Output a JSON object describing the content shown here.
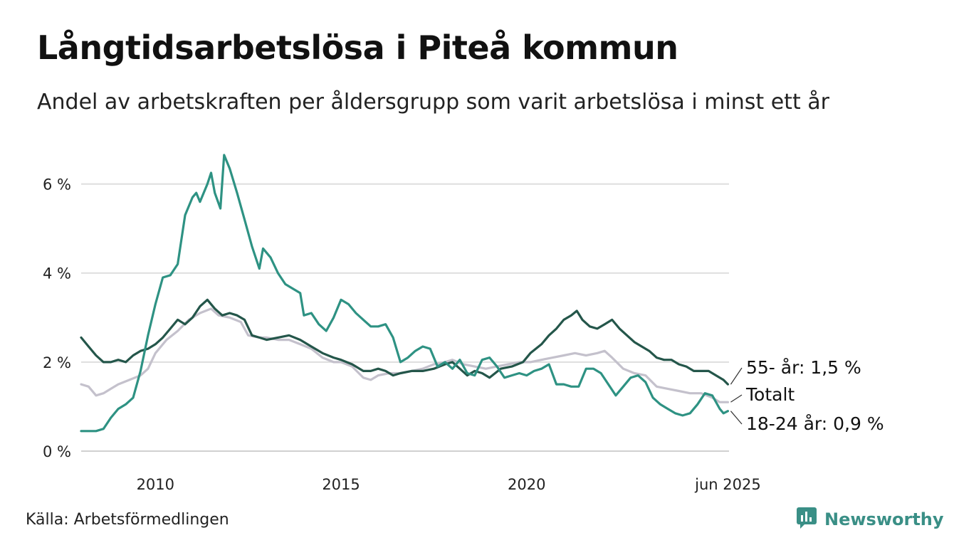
{
  "title": "Långtidsarbetslösa i Piteå kommun",
  "subtitle": "Andel av arbetskraften per åldersgrupp som varit arbetslösa i minst ett år",
  "source": "Källa: Arbetsförmedlingen",
  "brand": "Newsworthy",
  "brand_icon": "bar-chart-icon",
  "chart_data": {
    "type": "line",
    "xlim": [
      2008.0,
      2025.45
    ],
    "ylim": [
      0,
      7
    ],
    "x_ticks": [
      {
        "value": 2010,
        "label": "2010"
      },
      {
        "value": 2015,
        "label": "2015"
      },
      {
        "value": 2020,
        "label": "2020"
      },
      {
        "value": 2025.42,
        "label": "jun 2025"
      }
    ],
    "y_ticks": [
      {
        "value": 0,
        "label": "0 %"
      },
      {
        "value": 2,
        "label": "2 %"
      },
      {
        "value": 4,
        "label": "4 %"
      },
      {
        "value": 6,
        "label": "6 %"
      }
    ],
    "grid": true,
    "legend": "direct labels at line ends",
    "series": [
      {
        "name": "Totalt",
        "end_label": "Totalt",
        "color": "#c4c1cc",
        "points": [
          [
            2008.0,
            1.5
          ],
          [
            2008.2,
            1.45
          ],
          [
            2008.4,
            1.25
          ],
          [
            2008.6,
            1.3
          ],
          [
            2008.8,
            1.4
          ],
          [
            2009.0,
            1.5
          ],
          [
            2009.3,
            1.6
          ],
          [
            2009.6,
            1.7
          ],
          [
            2009.8,
            1.85
          ],
          [
            2010.0,
            2.2
          ],
          [
            2010.3,
            2.5
          ],
          [
            2010.6,
            2.7
          ],
          [
            2010.9,
            2.95
          ],
          [
            2011.2,
            3.1
          ],
          [
            2011.5,
            3.2
          ],
          [
            2011.7,
            3.05
          ],
          [
            2012.0,
            3.0
          ],
          [
            2012.3,
            2.9
          ],
          [
            2012.5,
            2.6
          ],
          [
            2012.8,
            2.55
          ],
          [
            2013.0,
            2.55
          ],
          [
            2013.3,
            2.5
          ],
          [
            2013.6,
            2.5
          ],
          [
            2013.9,
            2.4
          ],
          [
            2014.2,
            2.3
          ],
          [
            2014.5,
            2.1
          ],
          [
            2014.8,
            2.0
          ],
          [
            2015.0,
            2.0
          ],
          [
            2015.3,
            1.9
          ],
          [
            2015.6,
            1.65
          ],
          [
            2015.8,
            1.6
          ],
          [
            2016.0,
            1.7
          ],
          [
            2016.3,
            1.75
          ],
          [
            2016.6,
            1.75
          ],
          [
            2016.9,
            1.8
          ],
          [
            2017.2,
            1.85
          ],
          [
            2017.5,
            1.95
          ],
          [
            2017.8,
            2.0
          ],
          [
            2018.0,
            2.05
          ],
          [
            2018.3,
            1.95
          ],
          [
            2018.6,
            1.9
          ],
          [
            2018.9,
            1.85
          ],
          [
            2019.2,
            1.9
          ],
          [
            2019.5,
            1.95
          ],
          [
            2019.8,
            2.0
          ],
          [
            2020.1,
            2.0
          ],
          [
            2020.4,
            2.05
          ],
          [
            2020.7,
            2.1
          ],
          [
            2021.0,
            2.15
          ],
          [
            2021.3,
            2.2
          ],
          [
            2021.6,
            2.15
          ],
          [
            2021.9,
            2.2
          ],
          [
            2022.1,
            2.25
          ],
          [
            2022.3,
            2.1
          ],
          [
            2022.6,
            1.85
          ],
          [
            2022.9,
            1.75
          ],
          [
            2023.2,
            1.7
          ],
          [
            2023.5,
            1.45
          ],
          [
            2023.8,
            1.4
          ],
          [
            2024.1,
            1.35
          ],
          [
            2024.4,
            1.3
          ],
          [
            2024.7,
            1.3
          ],
          [
            2025.0,
            1.2
          ],
          [
            2025.2,
            1.1
          ],
          [
            2025.42,
            1.1
          ]
        ]
      },
      {
        "name": "55- år",
        "end_label": "55- år: 1,5 %",
        "color": "#24564a",
        "points": [
          [
            2008.0,
            2.55
          ],
          [
            2008.2,
            2.35
          ],
          [
            2008.4,
            2.15
          ],
          [
            2008.6,
            2.0
          ],
          [
            2008.8,
            2.0
          ],
          [
            2009.0,
            2.05
          ],
          [
            2009.2,
            2.0
          ],
          [
            2009.4,
            2.15
          ],
          [
            2009.6,
            2.25
          ],
          [
            2009.8,
            2.3
          ],
          [
            2010.0,
            2.4
          ],
          [
            2010.2,
            2.55
          ],
          [
            2010.4,
            2.75
          ],
          [
            2010.6,
            2.95
          ],
          [
            2010.8,
            2.85
          ],
          [
            2011.0,
            3.0
          ],
          [
            2011.2,
            3.25
          ],
          [
            2011.4,
            3.4
          ],
          [
            2011.6,
            3.2
          ],
          [
            2011.8,
            3.05
          ],
          [
            2012.0,
            3.1
          ],
          [
            2012.2,
            3.05
          ],
          [
            2012.4,
            2.95
          ],
          [
            2012.6,
            2.6
          ],
          [
            2012.8,
            2.55
          ],
          [
            2013.0,
            2.5
          ],
          [
            2013.3,
            2.55
          ],
          [
            2013.6,
            2.6
          ],
          [
            2013.9,
            2.5
          ],
          [
            2014.2,
            2.35
          ],
          [
            2014.5,
            2.2
          ],
          [
            2014.8,
            2.1
          ],
          [
            2015.0,
            2.05
          ],
          [
            2015.3,
            1.95
          ],
          [
            2015.6,
            1.8
          ],
          [
            2015.8,
            1.8
          ],
          [
            2016.0,
            1.85
          ],
          [
            2016.2,
            1.8
          ],
          [
            2016.4,
            1.7
          ],
          [
            2016.6,
            1.75
          ],
          [
            2016.9,
            1.8
          ],
          [
            2017.2,
            1.8
          ],
          [
            2017.5,
            1.85
          ],
          [
            2017.8,
            1.95
          ],
          [
            2018.0,
            2.0
          ],
          [
            2018.2,
            1.85
          ],
          [
            2018.4,
            1.7
          ],
          [
            2018.6,
            1.8
          ],
          [
            2018.8,
            1.75
          ],
          [
            2019.0,
            1.65
          ],
          [
            2019.3,
            1.85
          ],
          [
            2019.6,
            1.9
          ],
          [
            2019.9,
            2.0
          ],
          [
            2020.1,
            2.2
          ],
          [
            2020.4,
            2.4
          ],
          [
            2020.6,
            2.6
          ],
          [
            2020.8,
            2.75
          ],
          [
            2021.0,
            2.95
          ],
          [
            2021.2,
            3.05
          ],
          [
            2021.35,
            3.15
          ],
          [
            2021.5,
            2.95
          ],
          [
            2021.7,
            2.8
          ],
          [
            2021.9,
            2.75
          ],
          [
            2022.1,
            2.85
          ],
          [
            2022.3,
            2.95
          ],
          [
            2022.5,
            2.75
          ],
          [
            2022.7,
            2.6
          ],
          [
            2022.9,
            2.45
          ],
          [
            2023.1,
            2.35
          ],
          [
            2023.3,
            2.25
          ],
          [
            2023.5,
            2.1
          ],
          [
            2023.7,
            2.05
          ],
          [
            2023.9,
            2.05
          ],
          [
            2024.1,
            1.95
          ],
          [
            2024.3,
            1.9
          ],
          [
            2024.5,
            1.8
          ],
          [
            2024.7,
            1.8
          ],
          [
            2024.9,
            1.8
          ],
          [
            2025.1,
            1.7
          ],
          [
            2025.3,
            1.6
          ],
          [
            2025.42,
            1.5
          ]
        ]
      },
      {
        "name": "18-24 år",
        "end_label": "18-24 år: 0,9 %",
        "color": "#2e9283",
        "points": [
          [
            2008.0,
            0.45
          ],
          [
            2008.2,
            0.45
          ],
          [
            2008.4,
            0.45
          ],
          [
            2008.6,
            0.5
          ],
          [
            2008.8,
            0.75
          ],
          [
            2009.0,
            0.95
          ],
          [
            2009.2,
            1.05
          ],
          [
            2009.4,
            1.2
          ],
          [
            2009.6,
            1.8
          ],
          [
            2009.8,
            2.6
          ],
          [
            2010.0,
            3.3
          ],
          [
            2010.2,
            3.9
          ],
          [
            2010.4,
            3.95
          ],
          [
            2010.6,
            4.2
          ],
          [
            2010.8,
            5.3
          ],
          [
            2011.0,
            5.7
          ],
          [
            2011.1,
            5.8
          ],
          [
            2011.2,
            5.6
          ],
          [
            2011.4,
            6.0
          ],
          [
            2011.5,
            6.25
          ],
          [
            2011.6,
            5.8
          ],
          [
            2011.75,
            5.45
          ],
          [
            2011.85,
            6.65
          ],
          [
            2012.0,
            6.35
          ],
          [
            2012.2,
            5.8
          ],
          [
            2012.4,
            5.2
          ],
          [
            2012.6,
            4.6
          ],
          [
            2012.8,
            4.1
          ],
          [
            2012.9,
            4.55
          ],
          [
            2013.1,
            4.35
          ],
          [
            2013.3,
            4.0
          ],
          [
            2013.5,
            3.75
          ],
          [
            2013.7,
            3.65
          ],
          [
            2013.9,
            3.55
          ],
          [
            2014.0,
            3.05
          ],
          [
            2014.2,
            3.1
          ],
          [
            2014.4,
            2.85
          ],
          [
            2014.6,
            2.7
          ],
          [
            2014.8,
            3.0
          ],
          [
            2015.0,
            3.4
          ],
          [
            2015.2,
            3.3
          ],
          [
            2015.4,
            3.1
          ],
          [
            2015.6,
            2.95
          ],
          [
            2015.8,
            2.8
          ],
          [
            2016.0,
            2.8
          ],
          [
            2016.2,
            2.85
          ],
          [
            2016.4,
            2.55
          ],
          [
            2016.6,
            2.0
          ],
          [
            2016.8,
            2.1
          ],
          [
            2017.0,
            2.25
          ],
          [
            2017.2,
            2.35
          ],
          [
            2017.4,
            2.3
          ],
          [
            2017.6,
            1.9
          ],
          [
            2017.8,
            2.0
          ],
          [
            2018.0,
            1.85
          ],
          [
            2018.2,
            2.05
          ],
          [
            2018.4,
            1.75
          ],
          [
            2018.6,
            1.7
          ],
          [
            2018.8,
            2.05
          ],
          [
            2019.0,
            2.1
          ],
          [
            2019.2,
            1.9
          ],
          [
            2019.4,
            1.65
          ],
          [
            2019.6,
            1.7
          ],
          [
            2019.8,
            1.75
          ],
          [
            2020.0,
            1.7
          ],
          [
            2020.2,
            1.8
          ],
          [
            2020.4,
            1.85
          ],
          [
            2020.6,
            1.95
          ],
          [
            2020.8,
            1.5
          ],
          [
            2021.0,
            1.5
          ],
          [
            2021.2,
            1.45
          ],
          [
            2021.4,
            1.45
          ],
          [
            2021.6,
            1.85
          ],
          [
            2021.8,
            1.85
          ],
          [
            2022.0,
            1.75
          ],
          [
            2022.2,
            1.5
          ],
          [
            2022.4,
            1.25
          ],
          [
            2022.6,
            1.45
          ],
          [
            2022.8,
            1.65
          ],
          [
            2023.0,
            1.7
          ],
          [
            2023.2,
            1.55
          ],
          [
            2023.4,
            1.2
          ],
          [
            2023.6,
            1.05
          ],
          [
            2023.8,
            0.95
          ],
          [
            2024.0,
            0.85
          ],
          [
            2024.2,
            0.8
          ],
          [
            2024.4,
            0.85
          ],
          [
            2024.6,
            1.05
          ],
          [
            2024.8,
            1.3
          ],
          [
            2025.0,
            1.25
          ],
          [
            2025.2,
            0.95
          ],
          [
            2025.3,
            0.85
          ],
          [
            2025.42,
            0.9
          ]
        ]
      }
    ]
  }
}
